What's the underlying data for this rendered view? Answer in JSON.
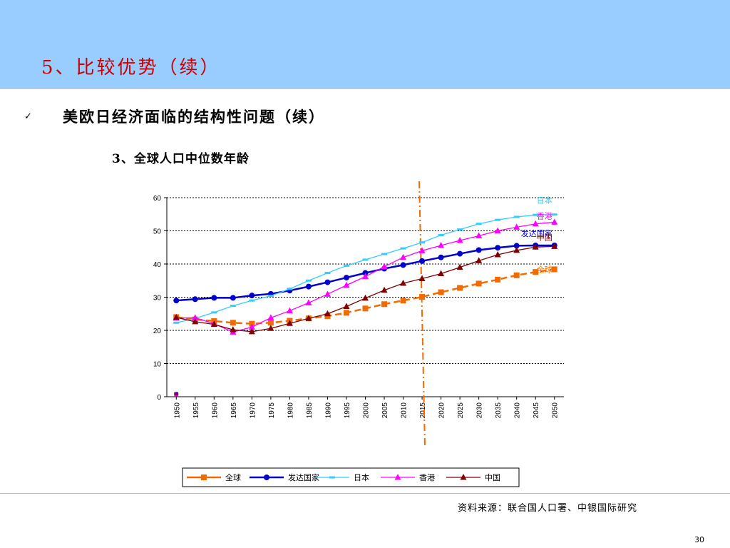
{
  "slide": {
    "title": "5、比较优势（续）",
    "bullet_icon": "check-mark-icon",
    "heading": "美欧日经济面临的结构性问题（续）",
    "subheading": "3、全球人口中位数年龄",
    "source": "资料来源：联合国人口署、中银国际研究",
    "page_number": "30"
  },
  "colors": {
    "header_bg": "#99ccff",
    "title": "#cc0000",
    "global": "#f26b00",
    "developed": "#0000cc",
    "japan": "#33ccff",
    "hongkong": "#ff00ff",
    "china": "#800000",
    "divider": "#f26b00"
  },
  "chart_data": {
    "type": "line",
    "x": [
      1950,
      1955,
      1960,
      1965,
      1970,
      1975,
      1980,
      1985,
      1990,
      1995,
      2000,
      2005,
      2010,
      2015,
      2020,
      2025,
      2030,
      2035,
      2040,
      2045,
      2050
    ],
    "ylim": [
      0,
      60
    ],
    "yticks": [
      0,
      10,
      20,
      30,
      40,
      50,
      60
    ],
    "grid": "horizontal dashed",
    "vertical_marker_x": 2015,
    "legend_position": "bottom",
    "series": [
      {
        "name": "全球",
        "marker": "square",
        "dashed": true,
        "color_key": "global",
        "label": "全球",
        "values": [
          24,
          23.3,
          22.8,
          22.3,
          22,
          22.3,
          22.9,
          23.6,
          24.3,
          25.3,
          26.6,
          27.9,
          29,
          30.1,
          31.5,
          32.8,
          34.1,
          35.3,
          36.6,
          37.6,
          38.4
        ]
      },
      {
        "name": "发达国家",
        "marker": "circle",
        "dashed": false,
        "color_key": "developed",
        "label": "发达国家",
        "values": [
          29,
          29.4,
          29.8,
          29.8,
          30.5,
          31,
          32,
          33.2,
          34.5,
          35.9,
          37.3,
          38.6,
          39.7,
          40.9,
          42,
          43.1,
          44.2,
          44.9,
          45.5,
          45.6,
          45.6
        ]
      },
      {
        "name": "日本",
        "marker": "dash",
        "dashed": false,
        "color_key": "japan",
        "label": "日本",
        "values": [
          22.3,
          23.6,
          25.4,
          27.4,
          29,
          30.4,
          32.5,
          35,
          37.3,
          39.5,
          41.3,
          43,
          44.7,
          46.5,
          48.7,
          50.4,
          52.1,
          53.3,
          54.2,
          54.8,
          54.9
        ]
      },
      {
        "name": "香港",
        "marker": "triangle",
        "dashed": false,
        "color_key": "hongkong",
        "label": "香港",
        "values": [
          23.7,
          23.8,
          22,
          19.5,
          21,
          23.8,
          25.9,
          28.3,
          30.9,
          33.6,
          36.2,
          39.2,
          42,
          44,
          45.6,
          47.1,
          48.5,
          50,
          51.1,
          52.1,
          52.6
        ]
      },
      {
        "name": "中国",
        "marker": "triangle",
        "dashed": false,
        "color_key": "china",
        "label": "中国",
        "values": [
          23.9,
          22.6,
          21.8,
          20.2,
          19.6,
          20.6,
          22.1,
          23.6,
          25,
          27.2,
          29.7,
          32.1,
          34.2,
          35.6,
          37.1,
          39,
          41,
          42.8,
          44.1,
          45.1,
          45.3
        ]
      }
    ]
  }
}
